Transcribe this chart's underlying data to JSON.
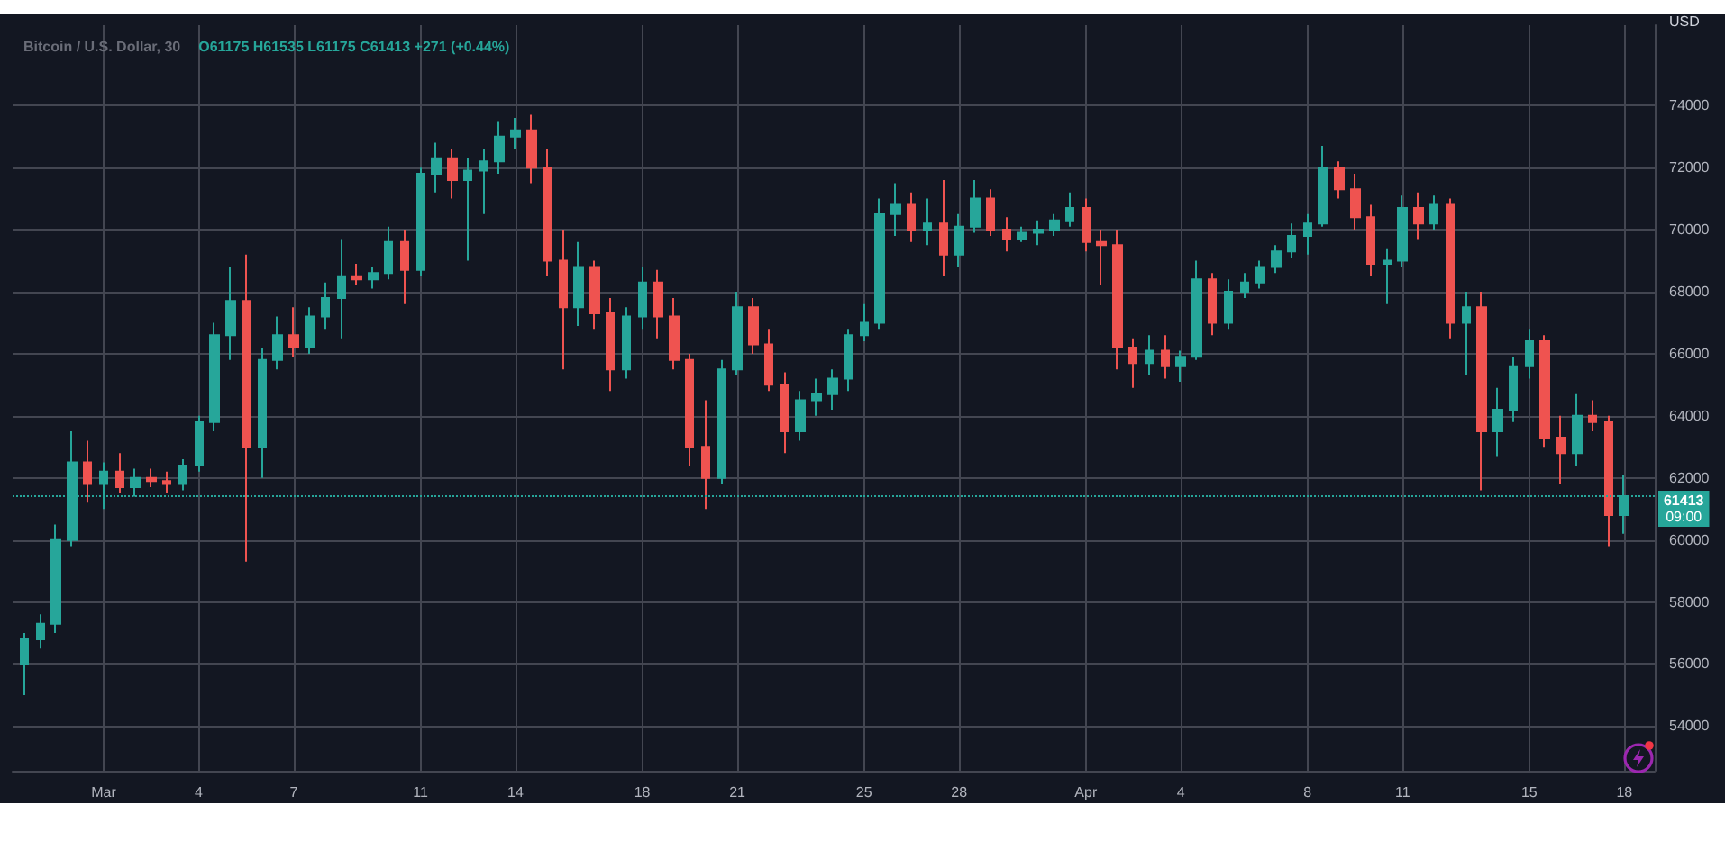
{
  "chart_data": {
    "type": "candlestick",
    "title": "Bitcoin / U.S. Dollar, 30",
    "subtitle": "O61175 H61535 L61175 C61413 +271 (+0.44%)",
    "ylabel": "USD",
    "annotations": [
      "09:00"
    ],
    "x": [
      "--02-27T12:00",
      "--02-28",
      "--02-28T12:00",
      "--02-29",
      "--02-29T12:00",
      "--03-01",
      "--03-01T12:00",
      "--03-02",
      "--03-02T12:00",
      "--03-03",
      "--03-03T12:00",
      "--03-04",
      "--03-04T12:00",
      "--03-05",
      "--03-05T12:00",
      "--03-06",
      "--03-06T12:00",
      "--03-07",
      "--03-07T12:00",
      "--03-08",
      "--03-08T12:00",
      "--03-09",
      "--03-09T12:00",
      "--03-10",
      "--03-10T12:00",
      "--03-11",
      "--03-11T12:00",
      "--03-12",
      "--03-12T12:00",
      "--03-13",
      "--03-13T12:00",
      "--03-14",
      "--03-14T12:00",
      "--03-15",
      "--03-15T12:00",
      "--03-16",
      "--03-16T12:00",
      "--03-17",
      "--03-17T12:00",
      "--03-18",
      "--03-18T12:00",
      "--03-19",
      "--03-19T12:00",
      "--03-20",
      "--03-20T12:00",
      "--03-21",
      "--03-21T12:00",
      "--03-22",
      "--03-22T12:00",
      "--03-23",
      "--03-23T12:00",
      "--03-24",
      "--03-24T12:00",
      "--03-25",
      "--03-25T12:00",
      "--03-26",
      "--03-26T12:00",
      "--03-27",
      "--03-27T12:00",
      "--03-28",
      "--03-28T12:00",
      "--03-29",
      "--03-29T12:00",
      "--03-30",
      "--03-30T12:00",
      "--03-31",
      "--03-31T12:00",
      "--04-01",
      "--04-01T12:00",
      "--04-02",
      "--04-02T12:00",
      "--04-03",
      "--04-03T12:00",
      "--04-04",
      "--04-04T12:00",
      "--04-05",
      "--04-05T12:00",
      "--04-06",
      "--04-06T12:00",
      "--04-07",
      "--04-07T12:00",
      "--04-08",
      "--04-08T12:00",
      "--04-09",
      "--04-09T12:00",
      "--04-10",
      "--04-10T12:00",
      "--04-11",
      "--04-11T12:00",
      "--04-12",
      "--04-12T12:00",
      "--04-13",
      "--04-13T12:00",
      "--04-14",
      "--04-14T12:00",
      "--04-15",
      "--04-15T12:00",
      "--04-16",
      "--04-16T12:00",
      "--04-17",
      "--04-17T12:00",
      "--04-18"
    ],
    "ohlc": [
      [
        56000,
        57000,
        55000,
        56800
      ],
      [
        56800,
        57600,
        56500,
        57300
      ],
      [
        57300,
        60500,
        57000,
        60000
      ],
      [
        60000,
        63500,
        59800,
        62500
      ],
      [
        62500,
        63200,
        61200,
        61800
      ],
      [
        61800,
        62500,
        61000,
        62200
      ],
      [
        62200,
        62800,
        61500,
        61700
      ],
      [
        61700,
        62300,
        61400,
        62000
      ],
      [
        62000,
        62300,
        61700,
        61900
      ],
      [
        61900,
        62200,
        61500,
        61800
      ],
      [
        61800,
        62600,
        61600,
        62400
      ],
      [
        62400,
        64000,
        62200,
        63800
      ],
      [
        63800,
        67000,
        63500,
        66600
      ],
      [
        66600,
        68800,
        65800,
        67700
      ],
      [
        67700,
        69200,
        59300,
        63000
      ],
      [
        63000,
        66200,
        62000,
        65800
      ],
      [
        65800,
        67200,
        65500,
        66600
      ],
      [
        66600,
        67500,
        65900,
        66200
      ],
      [
        66200,
        67500,
        66000,
        67200
      ],
      [
        67200,
        68300,
        66800,
        67800
      ],
      [
        67800,
        69700,
        66500,
        68500
      ],
      [
        68500,
        68900,
        68200,
        68400
      ],
      [
        68400,
        68800,
        68100,
        68600
      ],
      [
        68600,
        70100,
        68400,
        69600
      ],
      [
        69600,
        70000,
        67600,
        68700
      ],
      [
        68700,
        72000,
        68500,
        71800
      ],
      [
        71800,
        72800,
        71200,
        72300
      ],
      [
        72300,
        72600,
        71000,
        71600
      ],
      [
        71600,
        72300,
        69000,
        71900
      ],
      [
        71900,
        72600,
        70500,
        72200
      ],
      [
        72200,
        73500,
        71800,
        73000
      ],
      [
        73000,
        73600,
        72600,
        73200
      ],
      [
        73200,
        73700,
        71500,
        72000
      ],
      [
        72000,
        72600,
        68500,
        69000
      ],
      [
        69000,
        70000,
        65500,
        67500
      ],
      [
        67500,
        69600,
        66900,
        68800
      ],
      [
        68800,
        69000,
        66800,
        67300
      ],
      [
        67300,
        67800,
        64800,
        65500
      ],
      [
        65500,
        67500,
        65200,
        67200
      ],
      [
        67200,
        68800,
        66800,
        68300
      ],
      [
        68300,
        68700,
        66500,
        67200
      ],
      [
        67200,
        67800,
        65500,
        65800
      ],
      [
        65800,
        66000,
        62400,
        63000
      ],
      [
        63000,
        64500,
        61000,
        62000
      ],
      [
        62000,
        65800,
        61800,
        65500
      ],
      [
        65500,
        68000,
        65300,
        67500
      ],
      [
        67500,
        67800,
        66000,
        66300
      ],
      [
        66300,
        66800,
        64800,
        65000
      ],
      [
        65000,
        65400,
        62800,
        63500
      ],
      [
        63500,
        64800,
        63200,
        64500
      ],
      [
        64500,
        65200,
        64000,
        64700
      ],
      [
        64700,
        65500,
        64200,
        65200
      ],
      [
        65200,
        66800,
        64800,
        66600
      ],
      [
        66600,
        67600,
        66400,
        67000
      ],
      [
        67000,
        71000,
        66800,
        70500
      ],
      [
        70500,
        71500,
        69800,
        70800
      ],
      [
        70800,
        71200,
        69600,
        70000
      ],
      [
        70000,
        71000,
        69500,
        70200
      ],
      [
        70200,
        71600,
        68500,
        69200
      ],
      [
        69200,
        70500,
        68800,
        70100
      ],
      [
        70100,
        71600,
        69900,
        71000
      ],
      [
        71000,
        71300,
        69800,
        70000
      ],
      [
        70000,
        70400,
        69300,
        69700
      ],
      [
        69700,
        70100,
        69600,
        69900
      ],
      [
        69900,
        70300,
        69500,
        70000
      ],
      [
        70000,
        70500,
        69800,
        70300
      ],
      [
        70300,
        71200,
        70100,
        70700
      ],
      [
        70700,
        71000,
        69300,
        69600
      ],
      [
        69600,
        70000,
        68200,
        69500
      ],
      [
        69500,
        70000,
        65500,
        66200
      ],
      [
        66200,
        66500,
        64900,
        65700
      ],
      [
        65700,
        66600,
        65300,
        66100
      ],
      [
        66100,
        66600,
        65200,
        65600
      ],
      [
        65600,
        66100,
        65100,
        65900
      ],
      [
        65900,
        69000,
        65800,
        68400
      ],
      [
        68400,
        68600,
        66600,
        67000
      ],
      [
        67000,
        68400,
        66800,
        68000
      ],
      [
        68000,
        68600,
        67800,
        68300
      ],
      [
        68300,
        69000,
        68100,
        68800
      ],
      [
        68800,
        69500,
        68600,
        69300
      ],
      [
        69300,
        70200,
        69100,
        69800
      ],
      [
        69800,
        70500,
        69200,
        70200
      ],
      [
        70200,
        72700,
        70100,
        72000
      ],
      [
        72000,
        72200,
        71000,
        71300
      ],
      [
        71300,
        71800,
        70000,
        70400
      ],
      [
        70400,
        70800,
        68500,
        68900
      ],
      [
        68900,
        69400,
        67600,
        69000
      ],
      [
        69000,
        71100,
        68800,
        70700
      ],
      [
        70700,
        71200,
        69700,
        70200
      ],
      [
        70200,
        71100,
        70000,
        70800
      ],
      [
        70800,
        71000,
        66500,
        67000
      ],
      [
        67000,
        68000,
        65300,
        67500
      ],
      [
        67500,
        68000,
        61600,
        63500
      ],
      [
        63500,
        64900,
        62700,
        64200
      ],
      [
        64200,
        65900,
        63800,
        65600
      ],
      [
        65600,
        66800,
        65200,
        66400
      ],
      [
        66400,
        66600,
        63000,
        63300
      ],
      [
        63300,
        64000,
        61800,
        62800
      ],
      [
        62800,
        64700,
        62400,
        64000
      ],
      [
        64000,
        64500,
        63500,
        63800
      ],
      [
        63800,
        64000,
        59800,
        60800
      ],
      [
        60800,
        62100,
        60200,
        61413
      ]
    ],
    "xlim": [
      "--02-27T03:00",
      "--04-18T23:00"
    ],
    "xticks": [
      {
        "value": "--03-01",
        "label": "Mar"
      },
      {
        "value": "--03-04",
        "label": "4"
      },
      {
        "value": "--03-07",
        "label": "7"
      },
      {
        "value": "--03-11",
        "label": "11"
      },
      {
        "value": "--03-14",
        "label": "14"
      },
      {
        "value": "--03-18",
        "label": "18"
      },
      {
        "value": "--03-21",
        "label": "21"
      },
      {
        "value": "--03-25",
        "label": "25"
      },
      {
        "value": "--03-28",
        "label": "28"
      },
      {
        "value": "--04-01",
        "label": "Apr"
      },
      {
        "value": "--04-04",
        "label": "4"
      },
      {
        "value": "--04-08",
        "label": "8"
      },
      {
        "value": "--04-11",
        "label": "11"
      },
      {
        "value": "--04-15",
        "label": "15"
      },
      {
        "value": "--04-18",
        "label": "18"
      }
    ],
    "ylim": [
      52560,
      76590
    ],
    "yticks": [
      54000,
      56000,
      58000,
      60000,
      62000,
      64000,
      66000,
      68000,
      70000,
      72000,
      74000
    ],
    "ref_lines": [
      {
        "axis": "y",
        "value": 61413,
        "label": "61413",
        "color": "#26a69a",
        "line_style": "dotted"
      }
    ],
    "grid": true
  }
}
